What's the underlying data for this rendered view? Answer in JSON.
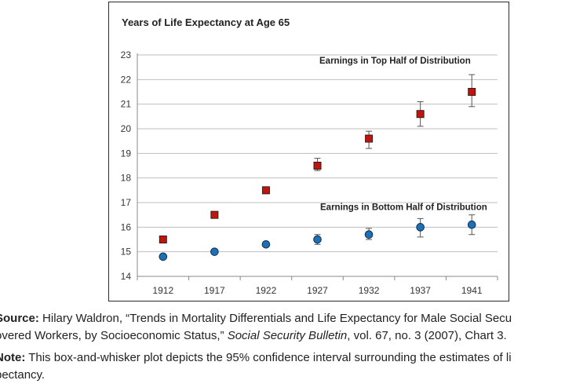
{
  "chart_data": {
    "type": "scatter",
    "title": "Years of Life Expectancy at Age 65",
    "categories": [
      "1912",
      "1917",
      "1922",
      "1927",
      "1932",
      "1937",
      "1941"
    ],
    "ylim": [
      14,
      23
    ],
    "yticks": [
      14,
      15,
      16,
      17,
      18,
      19,
      20,
      21,
      22,
      23
    ],
    "grid": true,
    "error_bars": "95% confidence interval",
    "series": [
      {
        "name": "Earnings in Top Half of Distribution",
        "marker": "square",
        "color": "#c0140f",
        "values": [
          15.5,
          16.5,
          17.5,
          18.5,
          19.6,
          20.6,
          21.5
        ],
        "lower": [
          15.45,
          16.45,
          17.4,
          18.3,
          19.2,
          20.1,
          20.9
        ],
        "upper": [
          15.55,
          16.55,
          17.6,
          18.8,
          19.9,
          21.1,
          22.2
        ]
      },
      {
        "name": "Earnings in Bottom Half of Distribution",
        "marker": "circle",
        "color": "#1f6fb5",
        "values": [
          14.8,
          15.0,
          15.3,
          15.5,
          15.7,
          16.0,
          16.1
        ],
        "lower": [
          14.75,
          14.95,
          15.2,
          15.3,
          15.5,
          15.6,
          15.7
        ],
        "upper": [
          14.85,
          15.05,
          15.4,
          15.7,
          15.95,
          16.35,
          16.5
        ]
      }
    ]
  },
  "notes": {
    "source_label": "Source:",
    "source_text_1": " Hilary Waldron, “Trends in Mortality Differentials  and Life Expectancy for Male Social Secu",
    "source_text_2": "overed Workers,  by Socioeconomic  Status,” ",
    "source_journal": "Social Security Bulletin",
    "source_text_3": ", vol. 67, no. 3 (2007), Chart 3.",
    "note_label": "Note:",
    "note_text_1": " This box-and-whisker plot depicts the 95% confidence interval surrounding the estimates  of li",
    "note_text_2": "pectancy."
  }
}
